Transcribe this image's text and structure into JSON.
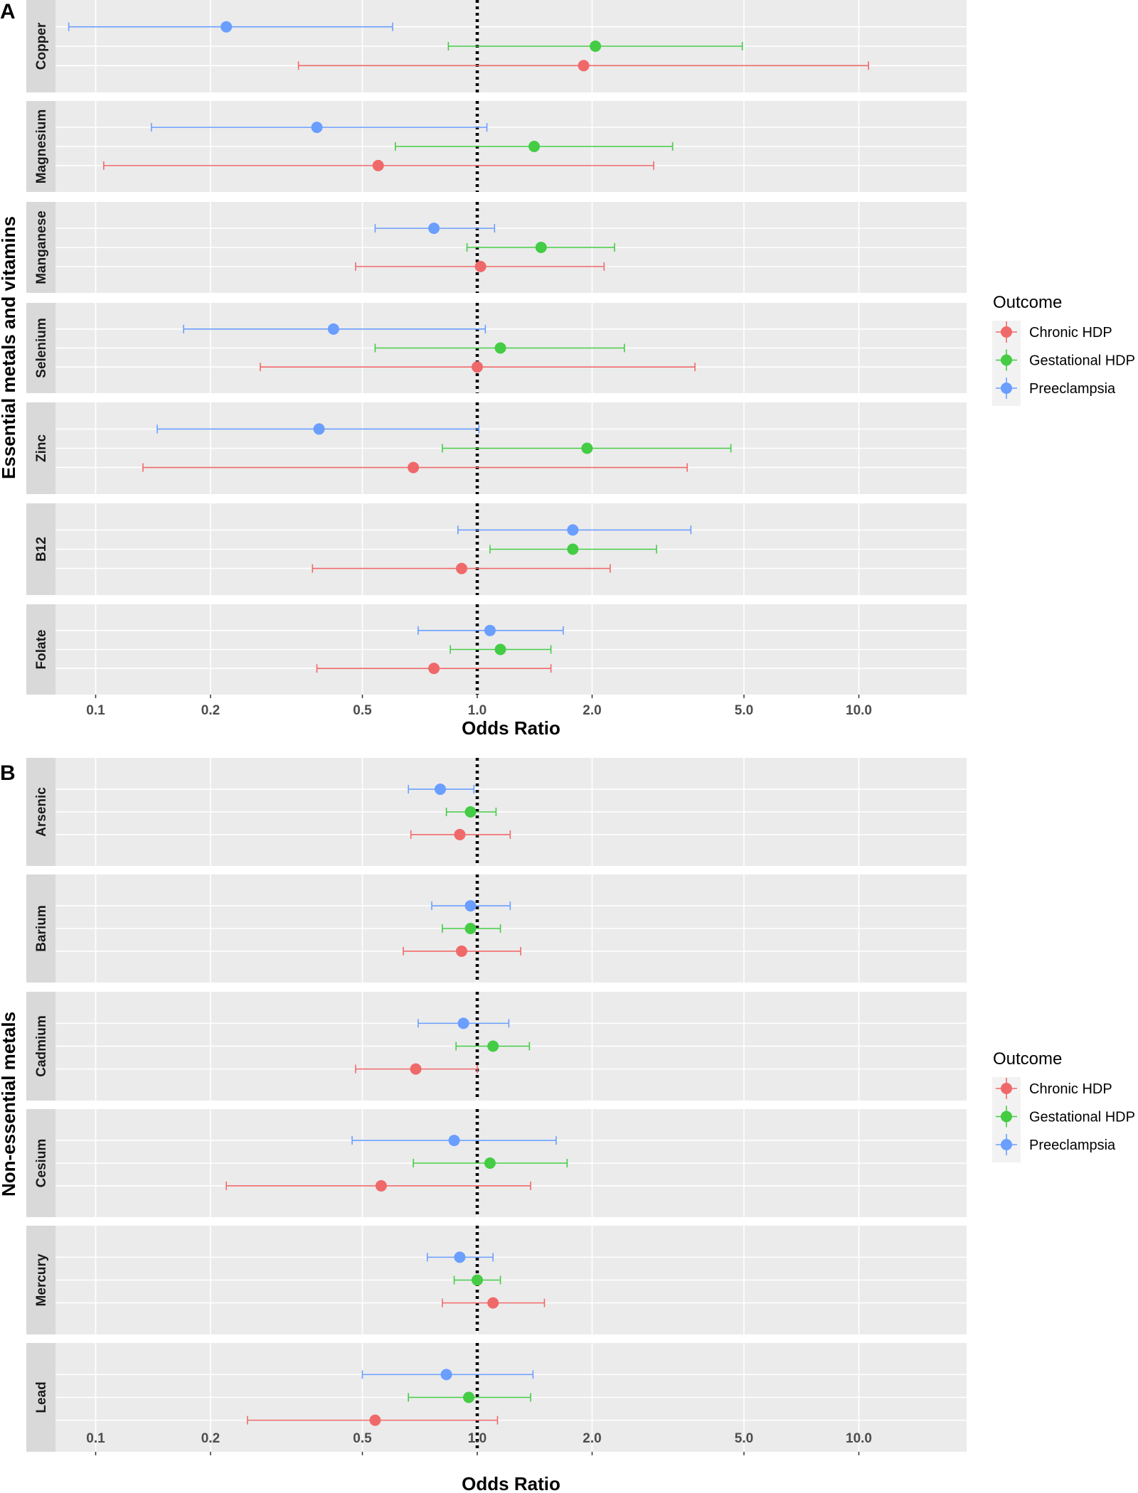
{
  "chart_data": [
    {
      "type": "forest",
      "panel_tag": "A",
      "group_label": "Essential metals and vitamins",
      "xlabel": "Odds Ratio",
      "xscale": "log10",
      "xlim": [
        0.08,
        15
      ],
      "xticks": [
        0.1,
        0.2,
        0.5,
        1.0,
        2.0,
        5.0,
        10.0
      ],
      "xtick_labels": [
        "0.1",
        "0.2",
        "0.5",
        "1.0",
        "2.0",
        "5.0",
        "10.0"
      ],
      "reference_line": 1.0,
      "legend": {
        "title": "Outcome",
        "items": [
          "Chronic HDP",
          "Gestational HDP",
          "Preeclampsia"
        ],
        "position": "right"
      },
      "facets": [
        {
          "name": "Copper",
          "rows": [
            {
              "outcome": "Preeclampsia",
              "or": 0.22,
              "lo": 0.085,
              "hi": 0.6
            },
            {
              "outcome": "Gestational HDP",
              "or": 2.04,
              "lo": 0.84,
              "hi": 4.95
            },
            {
              "outcome": "Chronic HDP",
              "or": 1.9,
              "lo": 0.34,
              "hi": 10.6
            }
          ]
        },
        {
          "name": "Magnesium",
          "rows": [
            {
              "outcome": "Preeclampsia",
              "or": 0.38,
              "lo": 0.14,
              "hi": 1.06
            },
            {
              "outcome": "Gestational HDP",
              "or": 1.41,
              "lo": 0.61,
              "hi": 3.25
            },
            {
              "outcome": "Chronic HDP",
              "or": 0.55,
              "lo": 0.105,
              "hi": 2.9
            }
          ]
        },
        {
          "name": "Manganese",
          "rows": [
            {
              "outcome": "Preeclampsia",
              "or": 0.77,
              "lo": 0.54,
              "hi": 1.11
            },
            {
              "outcome": "Gestational HDP",
              "or": 1.47,
              "lo": 0.94,
              "hi": 2.29
            },
            {
              "outcome": "Chronic HDP",
              "or": 1.02,
              "lo": 0.48,
              "hi": 2.15
            }
          ]
        },
        {
          "name": "Selenium",
          "rows": [
            {
              "outcome": "Preeclampsia",
              "or": 0.42,
              "lo": 0.17,
              "hi": 1.05
            },
            {
              "outcome": "Gestational HDP",
              "or": 1.15,
              "lo": 0.54,
              "hi": 2.43
            },
            {
              "outcome": "Chronic HDP",
              "or": 1.0,
              "lo": 0.27,
              "hi": 3.72
            }
          ]
        },
        {
          "name": "Zinc",
          "rows": [
            {
              "outcome": "Preeclampsia",
              "or": 0.385,
              "lo": 0.145,
              "hi": 1.01
            },
            {
              "outcome": "Gestational HDP",
              "or": 1.94,
              "lo": 0.81,
              "hi": 4.62
            },
            {
              "outcome": "Chronic HDP",
              "or": 0.68,
              "lo": 0.133,
              "hi": 3.55
            }
          ]
        },
        {
          "name": "B12",
          "rows": [
            {
              "outcome": "Preeclampsia",
              "or": 1.78,
              "lo": 0.89,
              "hi": 3.63
            },
            {
              "outcome": "Gestational HDP",
              "or": 1.78,
              "lo": 1.08,
              "hi": 2.95
            },
            {
              "outcome": "Chronic HDP",
              "or": 0.91,
              "lo": 0.37,
              "hi": 2.23
            }
          ]
        },
        {
          "name": "Folate",
          "rows": [
            {
              "outcome": "Preeclampsia",
              "or": 1.08,
              "lo": 0.7,
              "hi": 1.68
            },
            {
              "outcome": "Gestational HDP",
              "or": 1.15,
              "lo": 0.85,
              "hi": 1.56
            },
            {
              "outcome": "Chronic HDP",
              "or": 0.77,
              "lo": 0.38,
              "hi": 1.56
            }
          ]
        }
      ]
    },
    {
      "type": "forest",
      "panel_tag": "B",
      "group_label": "Non-essential metals",
      "xlabel": "Odds Ratio",
      "xscale": "log10",
      "xlim": [
        0.08,
        15
      ],
      "xticks": [
        0.1,
        0.2,
        0.5,
        1.0,
        2.0,
        5.0,
        10.0
      ],
      "xtick_labels": [
        "0.1",
        "0.2",
        "0.5",
        "1.0",
        "2.0",
        "5.0",
        "10.0"
      ],
      "reference_line": 1.0,
      "legend": {
        "title": "Outcome",
        "items": [
          "Chronic HDP",
          "Gestational HDP",
          "Preeclampsia"
        ],
        "position": "right"
      },
      "facets": [
        {
          "name": "Arsenic",
          "rows": [
            {
              "outcome": "Preeclampsia",
              "or": 0.8,
              "lo": 0.66,
              "hi": 0.98
            },
            {
              "outcome": "Gestational HDP",
              "or": 0.96,
              "lo": 0.83,
              "hi": 1.12
            },
            {
              "outcome": "Chronic HDP",
              "or": 0.9,
              "lo": 0.67,
              "hi": 1.22
            }
          ]
        },
        {
          "name": "Barium",
          "rows": [
            {
              "outcome": "Preeclampsia",
              "or": 0.96,
              "lo": 0.76,
              "hi": 1.22
            },
            {
              "outcome": "Gestational HDP",
              "or": 0.96,
              "lo": 0.81,
              "hi": 1.15
            },
            {
              "outcome": "Chronic HDP",
              "or": 0.91,
              "lo": 0.64,
              "hi": 1.3
            }
          ]
        },
        {
          "name": "Cadmium",
          "rows": [
            {
              "outcome": "Preeclampsia",
              "or": 0.92,
              "lo": 0.7,
              "hi": 1.21
            },
            {
              "outcome": "Gestational HDP",
              "or": 1.1,
              "lo": 0.88,
              "hi": 1.37
            },
            {
              "outcome": "Chronic HDP",
              "or": 0.69,
              "lo": 0.48,
              "hi": 1.0
            }
          ]
        },
        {
          "name": "Cesium",
          "rows": [
            {
              "outcome": "Preeclampsia",
              "or": 0.87,
              "lo": 0.47,
              "hi": 1.61
            },
            {
              "outcome": "Gestational HDP",
              "or": 1.08,
              "lo": 0.68,
              "hi": 1.72
            },
            {
              "outcome": "Chronic HDP",
              "or": 0.56,
              "lo": 0.22,
              "hi": 1.38
            }
          ]
        },
        {
          "name": "Mercury",
          "rows": [
            {
              "outcome": "Preeclampsia",
              "or": 0.9,
              "lo": 0.74,
              "hi": 1.1
            },
            {
              "outcome": "Gestational HDP",
              "or": 1.0,
              "lo": 0.87,
              "hi": 1.15
            },
            {
              "outcome": "Chronic HDP",
              "or": 1.1,
              "lo": 0.81,
              "hi": 1.5
            }
          ]
        },
        {
          "name": "Lead",
          "rows": [
            {
              "outcome": "Preeclampsia",
              "or": 0.83,
              "lo": 0.5,
              "hi": 1.4
            },
            {
              "outcome": "Gestational HDP",
              "or": 0.95,
              "lo": 0.66,
              "hi": 1.38
            },
            {
              "outcome": "Chronic HDP",
              "or": 0.54,
              "lo": 0.25,
              "hi": 1.13
            }
          ]
        }
      ]
    }
  ],
  "colors": {
    "Chronic HDP": "#F0696A",
    "Gestational HDP": "#44CC44",
    "Preeclampsia": "#6A9EFF",
    "panel_bg": "#EBEBEB",
    "strip_bg": "#D9D9D9"
  }
}
